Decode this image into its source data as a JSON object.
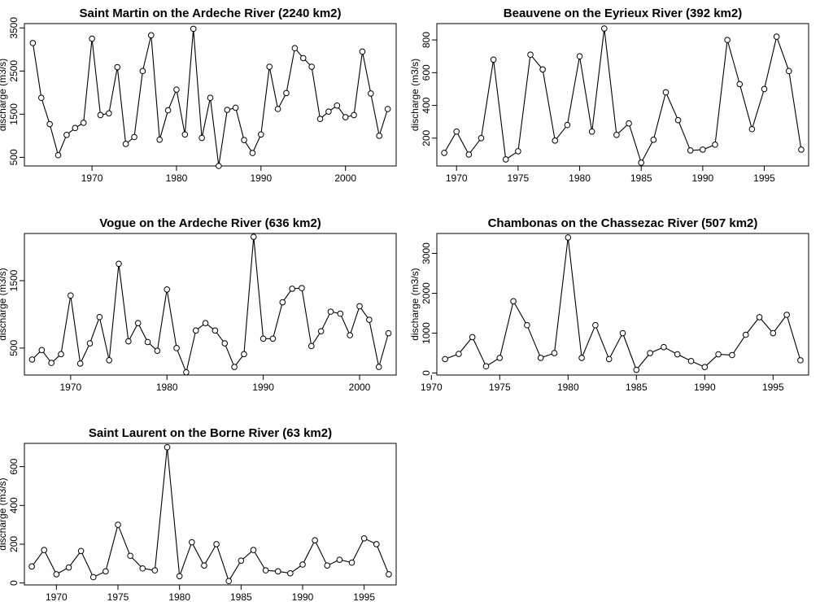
{
  "chart_data": [
    {
      "type": "line",
      "title": "Saint Martin on the Ardeche River (2240 km2)",
      "ylabel": "discharge (m3/s)",
      "xlim": [
        1962,
        2006
      ],
      "ylim": [
        300,
        3600
      ],
      "xticks": [
        1970,
        1980,
        1990,
        2000
      ],
      "yticks": [
        500,
        1500,
        2500,
        3500
      ],
      "series": [
        {
          "x": [
            1963,
            1964,
            1965,
            1966,
            1967,
            1968,
            1969,
            1970,
            1971,
            1972,
            1973,
            1974,
            1975,
            1976,
            1977,
            1978,
            1979,
            1980,
            1981,
            1982,
            1983,
            1984,
            1985,
            1986,
            1987,
            1988,
            1989,
            1990,
            1991,
            1992,
            1993,
            1994,
            1995,
            1996,
            1997,
            1998,
            1999,
            2000,
            2001,
            2002,
            2003,
            2004,
            2005
          ],
          "y": [
            3150,
            1880,
            1270,
            550,
            1020,
            1180,
            1300,
            3250,
            1480,
            1520,
            2590,
            810,
            970,
            2500,
            3330,
            910,
            1590,
            2070,
            1030,
            3480,
            950,
            1880,
            300,
            1600,
            1650,
            900,
            600,
            1030,
            2600,
            1620,
            1990,
            3030,
            2800,
            2600,
            1390,
            1560,
            1700,
            1430,
            1480,
            2950,
            1980,
            1000,
            1620
          ]
        }
      ]
    },
    {
      "type": "line",
      "title": "Beauvene on the Eyrieux River (392 km2)",
      "ylabel": "discharge (m3/s)",
      "xlim": [
        1968.4,
        1998.6
      ],
      "ylim": [
        30,
        900
      ],
      "xticks": [
        1970,
        1975,
        1980,
        1985,
        1990,
        1995
      ],
      "yticks": [
        200,
        400,
        600,
        800
      ],
      "series": [
        {
          "x": [
            1969,
            1970,
            1971,
            1972,
            1973,
            1974,
            1975,
            1976,
            1977,
            1978,
            1979,
            1980,
            1981,
            1982,
            1983,
            1984,
            1985,
            1986,
            1987,
            1988,
            1989,
            1990,
            1991,
            1992,
            1993,
            1994,
            1995,
            1996,
            1997,
            1998
          ],
          "y": [
            110,
            240,
            100,
            200,
            680,
            70,
            120,
            710,
            620,
            185,
            280,
            700,
            240,
            870,
            220,
            290,
            50,
            190,
            480,
            310,
            125,
            130,
            160,
            800,
            530,
            255,
            500,
            820,
            610,
            130
          ]
        }
      ]
    },
    {
      "type": "line",
      "title": "Vogue on the Ardeche River (636 km2)",
      "ylabel": "discharge (m3/s)",
      "xlim": [
        1965.2,
        2003.8
      ],
      "ylim": [
        100,
        2200
      ],
      "xticks": [
        1970,
        1980,
        1990,
        2000
      ],
      "yticks": [
        500,
        1500
      ],
      "series": [
        {
          "x": [
            1966,
            1967,
            1968,
            1969,
            1970,
            1971,
            1972,
            1973,
            1974,
            1975,
            1976,
            1977,
            1978,
            1979,
            1980,
            1981,
            1982,
            1983,
            1984,
            1985,
            1986,
            1987,
            1988,
            1989,
            1990,
            1991,
            1992,
            1993,
            1994,
            1995,
            1996,
            1997,
            1998,
            1999,
            2000,
            2001,
            2002,
            2003
          ],
          "y": [
            330,
            470,
            280,
            410,
            1280,
            270,
            570,
            960,
            320,
            1750,
            600,
            870,
            590,
            460,
            1370,
            500,
            140,
            760,
            870,
            760,
            570,
            220,
            410,
            2150,
            640,
            640,
            1180,
            1380,
            1390,
            530,
            750,
            1040,
            1010,
            690,
            1120,
            920,
            220,
            720
          ]
        }
      ]
    },
    {
      "type": "line",
      "title": "Chambonas on the Chassezac River (507 km2)",
      "ylabel": "discharge (m3/s)",
      "xlim": [
        1970.4,
        1997.6
      ],
      "ylim": [
        -50,
        3500
      ],
      "xticks": [
        1970,
        1975,
        1980,
        1985,
        1990,
        1995
      ],
      "yticks": [
        0,
        1000,
        2000,
        3000
      ],
      "series": [
        {
          "x": [
            1971,
            1972,
            1973,
            1974,
            1975,
            1976,
            1977,
            1978,
            1979,
            1980,
            1981,
            1982,
            1983,
            1984,
            1985,
            1986,
            1987,
            1988,
            1989,
            1990,
            1991,
            1992,
            1993,
            1994,
            1995,
            1996,
            1997
          ],
          "y": [
            350,
            480,
            900,
            170,
            380,
            1800,
            1200,
            380,
            500,
            3400,
            380,
            1200,
            350,
            1000,
            80,
            500,
            650,
            470,
            300,
            150,
            470,
            450,
            960,
            1400,
            1000,
            1460,
            320
          ]
        }
      ]
    },
    {
      "type": "line",
      "title": "Saint Laurent on the Borne River (63 km2)",
      "ylabel": "discharge (m3/s)",
      "xlim": [
        1967.4,
        1997.6
      ],
      "ylim": [
        -10,
        720
      ],
      "xticks": [
        1970,
        1975,
        1980,
        1985,
        1990,
        1995
      ],
      "yticks": [
        0,
        200,
        400,
        600
      ],
      "series": [
        {
          "x": [
            1968,
            1969,
            1970,
            1971,
            1972,
            1973,
            1974,
            1975,
            1976,
            1977,
            1978,
            1979,
            1980,
            1981,
            1982,
            1983,
            1984,
            1985,
            1986,
            1987,
            1988,
            1989,
            1990,
            1991,
            1992,
            1993,
            1994,
            1995,
            1996,
            1997
          ],
          "y": [
            85,
            170,
            45,
            80,
            165,
            30,
            60,
            300,
            140,
            75,
            65,
            700,
            35,
            210,
            90,
            200,
            10,
            115,
            170,
            65,
            60,
            50,
            95,
            220,
            90,
            120,
            105,
            230,
            200,
            45
          ]
        }
      ]
    }
  ]
}
